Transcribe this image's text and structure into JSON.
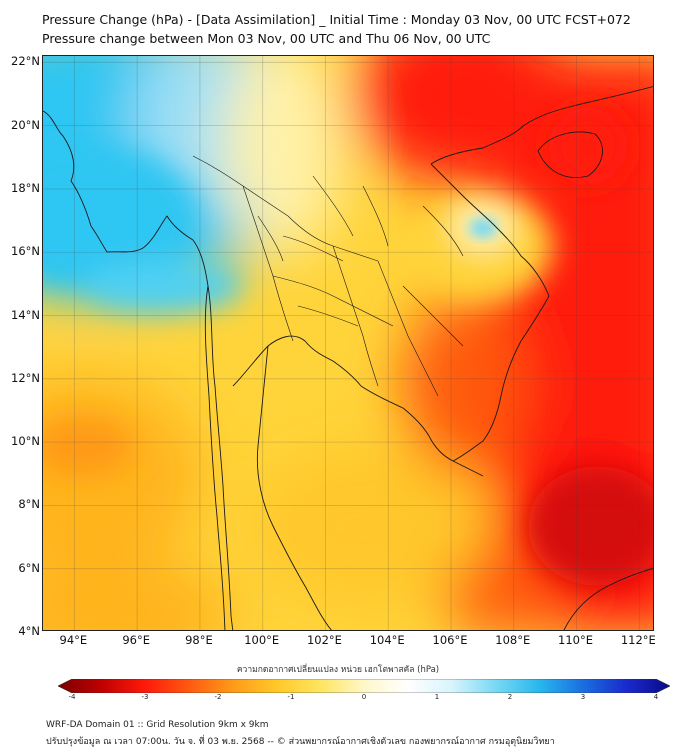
{
  "title": {
    "line1": "Pressure Change (hPa) - [Data Assimilation] _ Initial Time : Monday 03 Nov, 00 UTC FCST+072",
    "line2": "Pressure change between Mon 03 Nov, 00 UTC and Thu 06 Nov, 00 UTC"
  },
  "map": {
    "lat_labels": [
      "22°N",
      "20°N",
      "18°N",
      "16°N",
      "14°N",
      "12°N",
      "10°N",
      "8°N",
      "6°N",
      "4°N"
    ],
    "lon_labels": [
      "94°E",
      "96°E",
      "98°E",
      "100°E",
      "102°E",
      "104°E",
      "106°E",
      "108°E",
      "110°E",
      "112°E"
    ],
    "extent": {
      "lon_min": 93,
      "lon_max": 112.5,
      "lat_min": 4,
      "lat_max": 22.2
    },
    "field_colors": {
      "cyan": "#2fc6f2",
      "light_cyan": "#bfe9f7",
      "light_yellow": "#ffe98a",
      "yellow": "#ffd43a",
      "orange_yellow": "#ffba1c",
      "orange": "#ff8d12",
      "red_orange": "#ff4a0e",
      "red": "#ff1a0a",
      "dark_red": "#d40808"
    }
  },
  "colorbar": {
    "title": "ความกดอากาศเปลี่ยนแปลง หน่วย เฮกโตพาสคัล (hPa)",
    "ticks": [
      "-4",
      "-3",
      "-2",
      "-1",
      "0",
      "1",
      "2",
      "3",
      "4"
    ],
    "stops": [
      "#7a0000",
      "#c00000",
      "#ff1a0a",
      "#ff5a10",
      "#ff9a18",
      "#ffc828",
      "#ffe560",
      "#fff7c8",
      "#ffffff",
      "#d8f4fc",
      "#7ad9f4",
      "#28b8ee",
      "#1a6fe0",
      "#1a2acc",
      "#0a0a8a"
    ]
  },
  "footer": {
    "line1": "WRF-DA Domain 01 :: Grid Resolution 9km x 9km",
    "line2": "ปรับปรุงข้อมูล ณ เวลา 07:00น. วัน จ. ที่ 03 พ.ย. 2568 -- © ส่วนพยากรณ์อากาศเชิงตัวเลข กองพยากรณ์อากาศ กรมอุตุนิยมวิทยา"
  }
}
